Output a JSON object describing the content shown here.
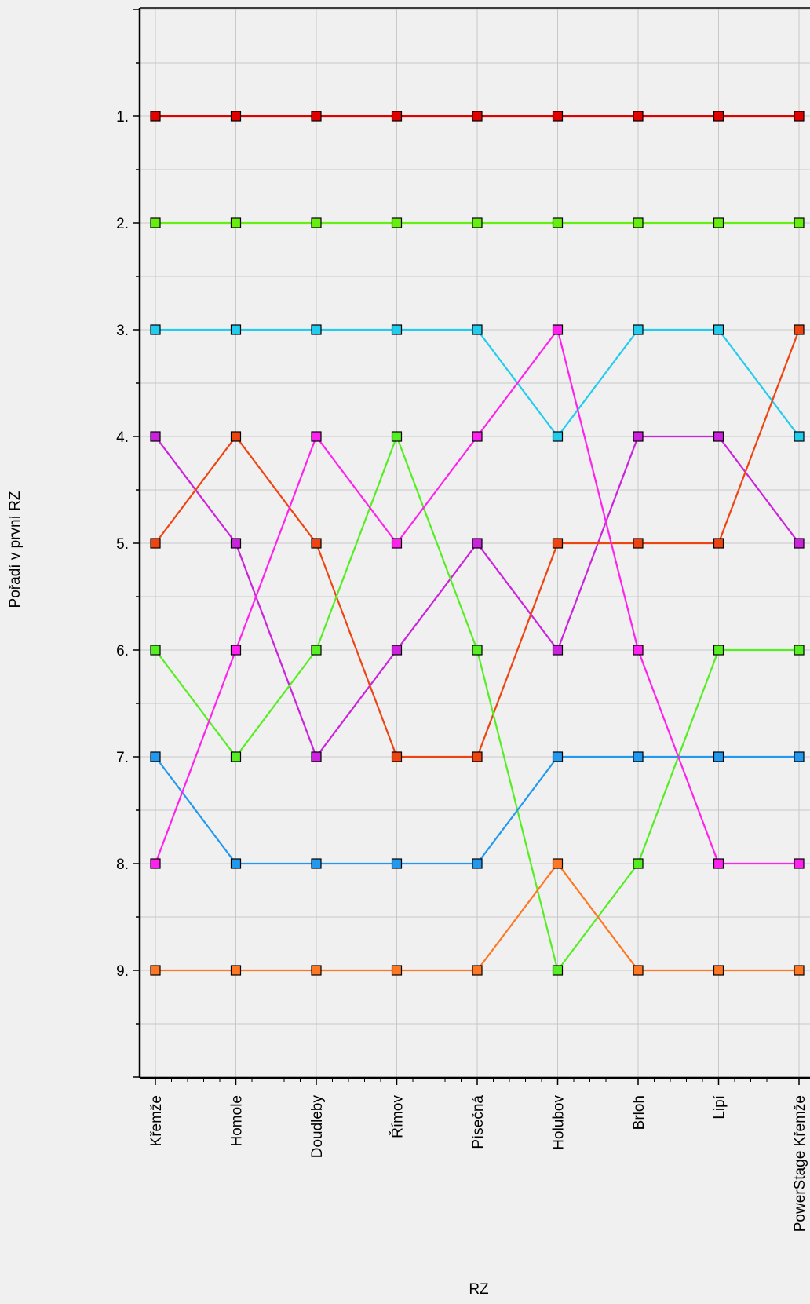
{
  "chart_data": {
    "type": "line",
    "title": "",
    "xlabel": "RZ",
    "ylabel": "Pořadí v první RZ",
    "categories": [
      "Křemže",
      "Homole",
      "Doudleby",
      "Římov",
      "Písečná",
      "Holubov",
      "Brloh",
      "Lipí",
      "PowerStage Křemže"
    ],
    "y_ticks": [
      "1.",
      "2.",
      "3.",
      "4.",
      "5.",
      "6.",
      "7.",
      "8.",
      "9."
    ],
    "ylim": [
      0,
      10
    ],
    "y_inverted": true,
    "grid": true,
    "series": [
      {
        "color": "#e00000",
        "values": [
          1,
          1,
          1,
          1,
          1,
          1,
          1,
          1,
          1
        ]
      },
      {
        "color": "#66ee11",
        "values": [
          2,
          2,
          2,
          2,
          2,
          2,
          2,
          2,
          2
        ]
      },
      {
        "color": "#22ccee",
        "values": [
          3,
          3,
          3,
          3,
          3,
          4,
          3,
          3,
          4
        ]
      },
      {
        "color": "#cc22dd",
        "values": [
          4,
          5,
          7,
          6,
          5,
          6,
          4,
          4,
          5
        ]
      },
      {
        "color": "#ee4411",
        "values": [
          5,
          4,
          5,
          7,
          7,
          5,
          5,
          5,
          3
        ]
      },
      {
        "color": "#55ee22",
        "values": [
          6,
          7,
          6,
          4,
          6,
          9,
          8,
          6,
          6
        ]
      },
      {
        "color": "#2299ee",
        "values": [
          7,
          8,
          8,
          8,
          8,
          7,
          7,
          7,
          7
        ]
      },
      {
        "color": "#ff22ee",
        "values": [
          8,
          6,
          4,
          5,
          4,
          3,
          6,
          8,
          8
        ]
      },
      {
        "color": "#ff7722",
        "values": [
          9,
          9,
          9,
          9,
          9,
          8,
          9,
          9,
          9
        ]
      }
    ]
  }
}
